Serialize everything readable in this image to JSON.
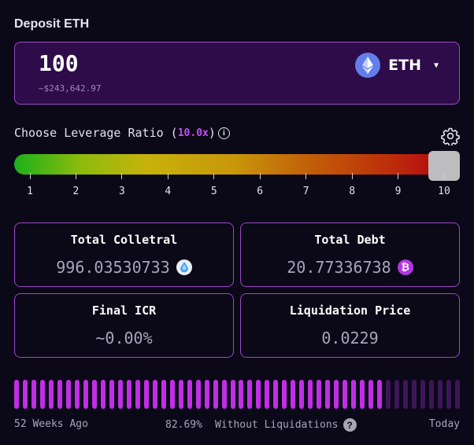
{
  "deposit": {
    "title": "Deposit ETH",
    "amount": "100",
    "usd_value": "~$243,642.97",
    "token": "ETH",
    "token_icon": "ethereum-icon"
  },
  "leverage": {
    "label_prefix": "Choose Leverage Ratio (",
    "value": "10.0x",
    "label_suffix": ")",
    "info_icon": "info-icon",
    "settings_icon": "gear-icon",
    "ticks": [
      "1",
      "2",
      "3",
      "4",
      "5",
      "6",
      "7",
      "8",
      "9",
      "10"
    ],
    "min": 1,
    "max": 10,
    "current": 10
  },
  "stats": {
    "collateral": {
      "title": "Total Colletral",
      "value": "996.03530733",
      "icon": "steth-icon"
    },
    "debt": {
      "title": "Total Debt",
      "value": "20.77336738",
      "icon": "bitcoin-icon"
    },
    "icr": {
      "title": "Final ICR",
      "value": "~0.00%"
    },
    "liquidation": {
      "title": "Liquidation Price",
      "value": "0.0229"
    }
  },
  "history": {
    "start_label": "52 Weeks Ago",
    "percent": "82.69%",
    "caption": "Without Liquidations",
    "end_label": "Today",
    "help_icon": "question-icon",
    "bar_count": 52,
    "active_count": 43,
    "colors": {
      "active": "#c12ee6",
      "inactive": "#3c1758"
    }
  }
}
